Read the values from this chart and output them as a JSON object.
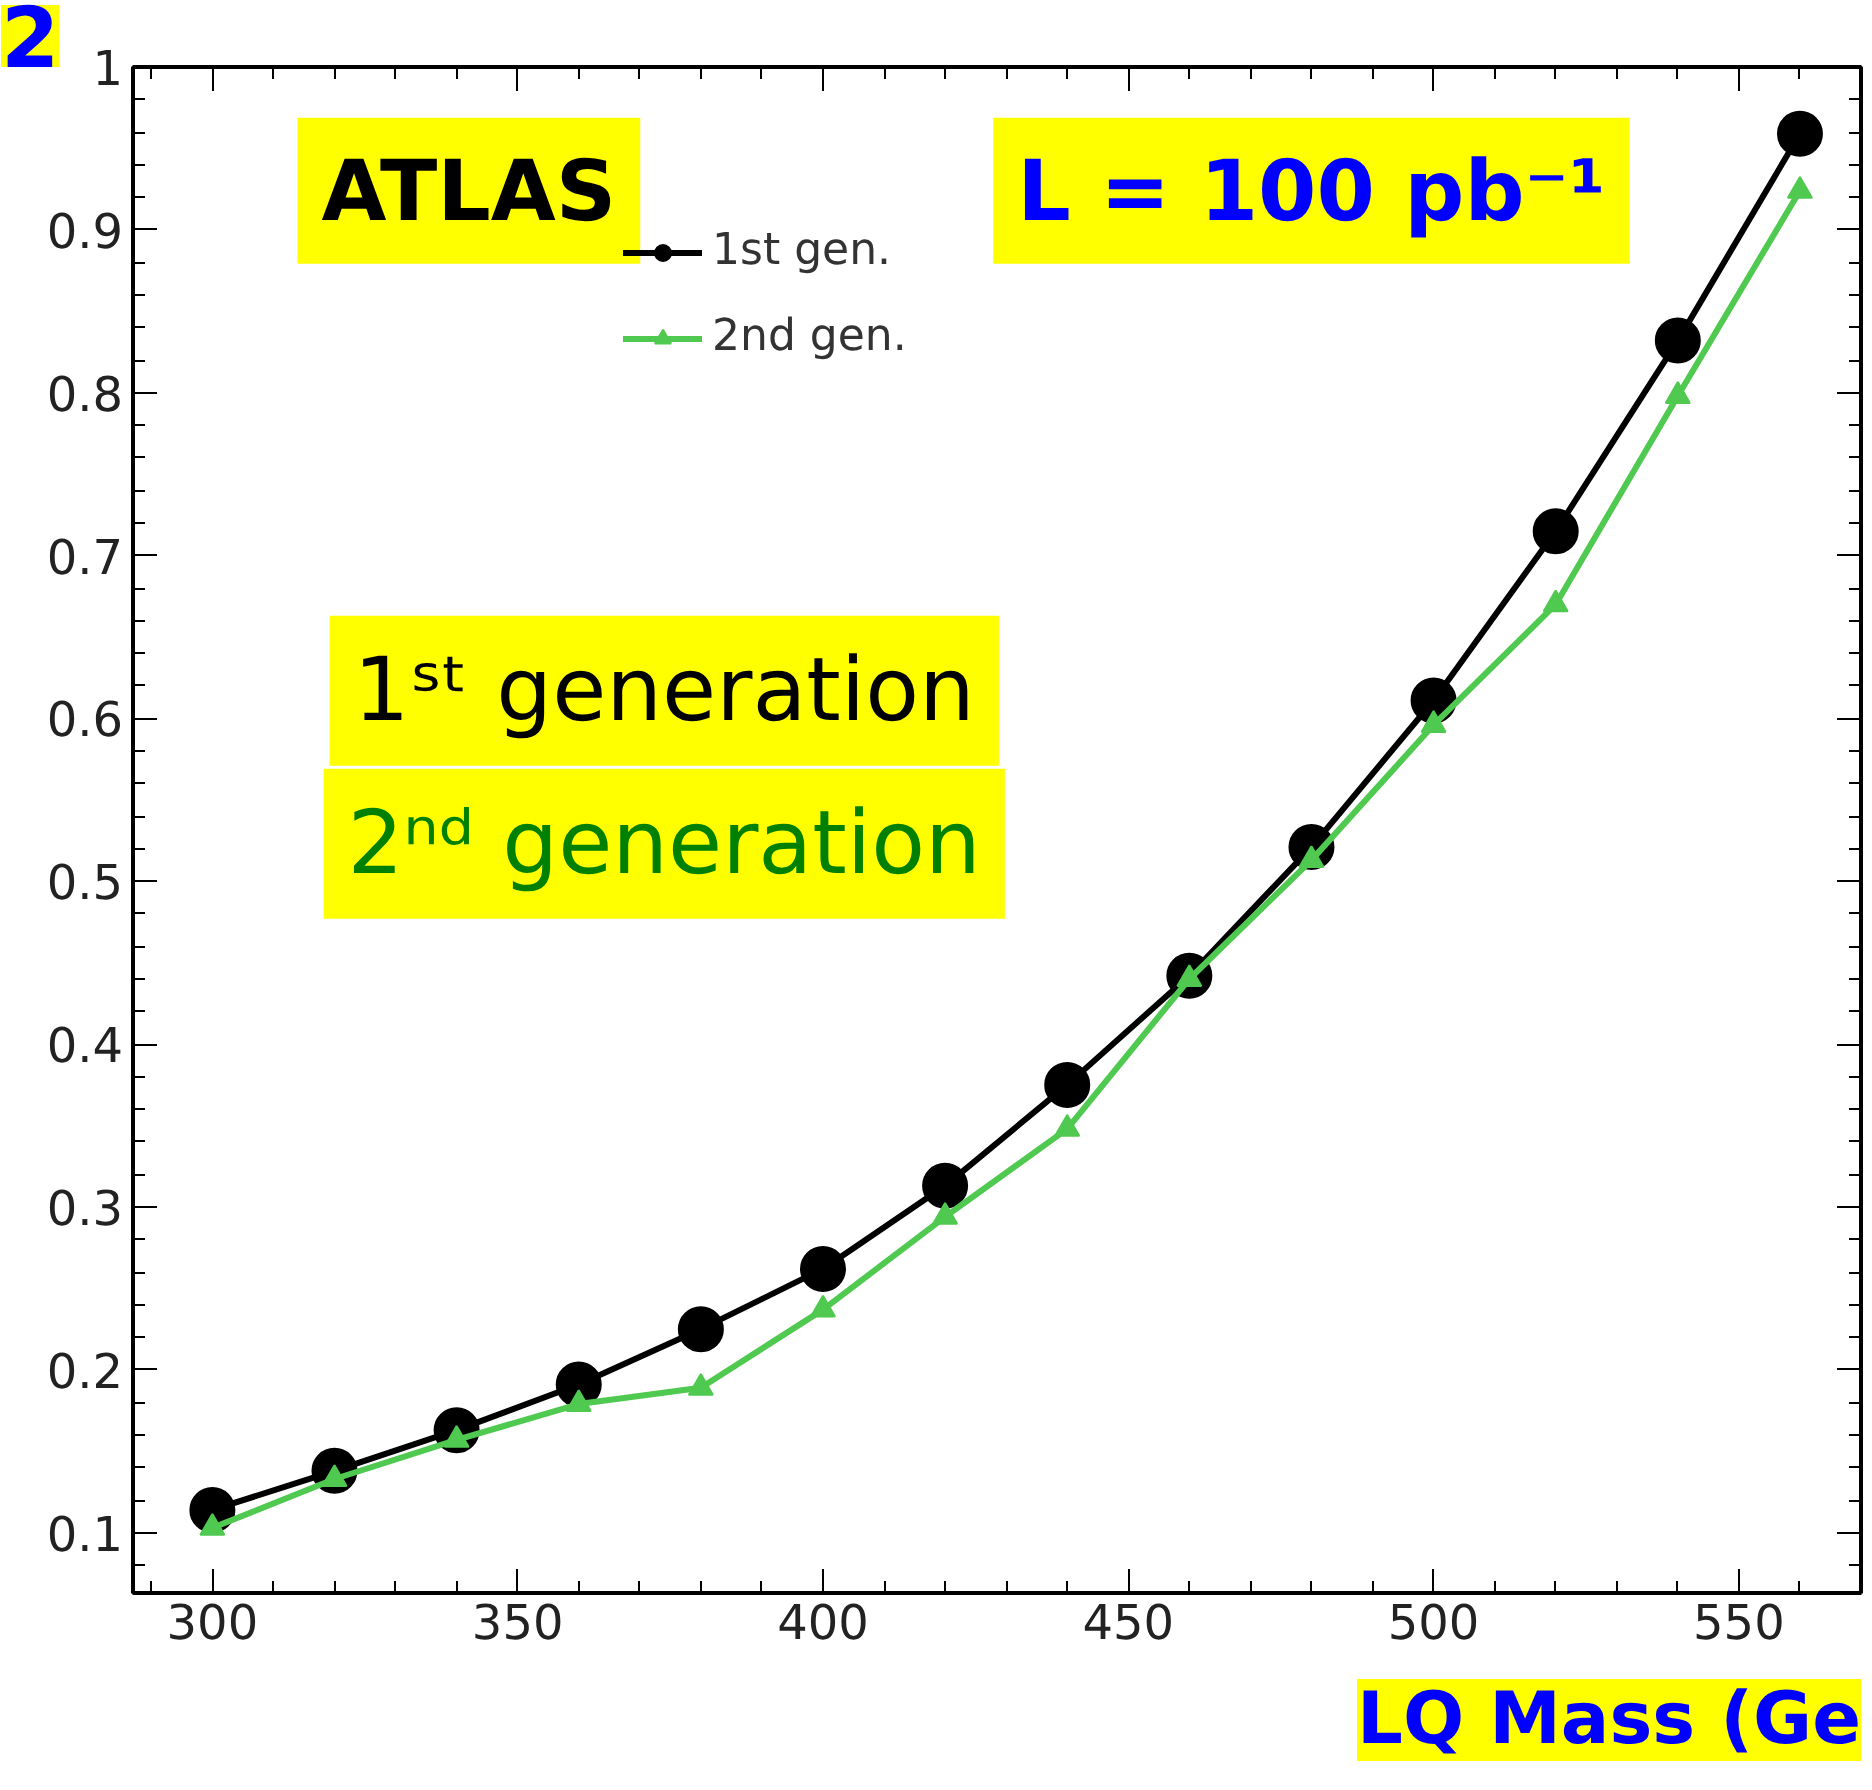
{
  "chart_data": {
    "type": "line",
    "xlabel": "LQ Mass (Ge",
    "x": [
      300,
      320,
      340,
      360,
      380,
      400,
      420,
      440,
      460,
      480,
      500,
      520,
      540,
      560
    ],
    "series": [
      {
        "name": "1st gen.",
        "color": "#000000",
        "marker": "circle",
        "values": [
          0.114,
          0.138,
          0.163,
          0.191,
          0.225,
          0.262,
          0.313,
          0.375,
          0.442,
          0.521,
          0.611,
          0.715,
          0.832,
          0.959
        ]
      },
      {
        "name": "2nd gen.",
        "color": "#4fc94f",
        "marker": "triangle",
        "values": [
          0.103,
          0.133,
          0.157,
          0.179,
          0.189,
          0.237,
          0.294,
          0.348,
          0.44,
          0.513,
          0.596,
          0.67,
          0.798,
          0.924
        ]
      }
    ],
    "xlim": [
      287,
      570
    ],
    "ylim": [
      0.063,
      1.0
    ],
    "xticks": [
      300,
      350,
      400,
      450,
      500,
      550
    ],
    "yticks": [
      0.1,
      0.2,
      0.3,
      0.4,
      0.5,
      0.6,
      0.7,
      0.8,
      0.9,
      1
    ],
    "legend": "top left",
    "grid": false,
    "line_style": "solid",
    "annotations": [
      "ATLAS",
      "L = 100 pb⁻¹",
      "1ˢᵗ generation",
      "2ⁿᵈ generation",
      "2"
    ]
  }
}
